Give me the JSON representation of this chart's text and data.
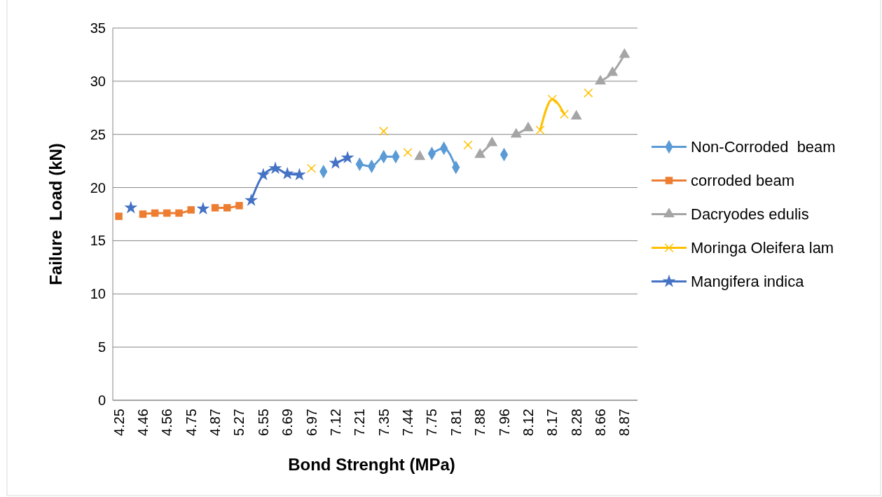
{
  "chart_data": {
    "type": "line",
    "xlabel": "Bond Strenght (MPa)",
    "ylabel": "Failure  Load (kN)",
    "categories": [
      "4.25",
      null,
      "4.46",
      null,
      "4.56",
      null,
      "4.75",
      null,
      "4.87",
      null,
      "5.27",
      null,
      "6.55",
      null,
      "6.69",
      null,
      "6.97",
      null,
      "7.12",
      null,
      "7.21",
      null,
      "7.35",
      null,
      "7.44",
      null,
      "7.75",
      null,
      "7.81",
      null,
      "7.88",
      null,
      "7.96",
      null,
      "8.12",
      null,
      "8.17",
      null,
      "8.28",
      null,
      "8.66",
      null,
      "8.87"
    ],
    "series": [
      {
        "name": "Non-Corroded  beam",
        "color": "#5b9bd5",
        "marker": "diamond",
        "values": [
          null,
          null,
          null,
          null,
          null,
          null,
          null,
          null,
          null,
          null,
          null,
          null,
          null,
          null,
          null,
          null,
          null,
          21.5,
          null,
          null,
          22.2,
          22.0,
          22.9,
          22.9,
          null,
          null,
          23.2,
          23.7,
          21.9,
          null,
          null,
          null,
          23.1,
          null,
          null,
          null,
          null,
          null,
          null,
          null,
          null,
          null,
          null
        ]
      },
      {
        "name": "corroded beam",
        "color": "#ed7d31",
        "marker": "square",
        "values": [
          17.3,
          null,
          17.5,
          17.6,
          17.6,
          17.6,
          17.9,
          null,
          18.1,
          18.1,
          18.3,
          null,
          null,
          null,
          null,
          null,
          null,
          null,
          null,
          null,
          null,
          null,
          null,
          null,
          null,
          null,
          null,
          null,
          null,
          null,
          null,
          null,
          null,
          null,
          null,
          null,
          null,
          null,
          null,
          null,
          null,
          null,
          null
        ]
      },
      {
        "name": "Dacryodes edulis",
        "color": "#a5a5a5",
        "marker": "triangle",
        "values": [
          null,
          null,
          null,
          null,
          null,
          null,
          null,
          null,
          null,
          null,
          null,
          null,
          null,
          null,
          null,
          null,
          null,
          null,
          null,
          null,
          null,
          null,
          null,
          null,
          null,
          22.9,
          null,
          null,
          null,
          null,
          23.1,
          24.2,
          null,
          25.0,
          25.6,
          null,
          null,
          null,
          26.7,
          null,
          30.0,
          30.8,
          32.5
        ]
      },
      {
        "name": "Moringa Oleifera lam",
        "color": "#ffc000",
        "marker": "cross",
        "values": [
          null,
          null,
          null,
          null,
          null,
          null,
          null,
          null,
          null,
          null,
          null,
          null,
          null,
          null,
          null,
          null,
          21.8,
          null,
          null,
          null,
          null,
          null,
          25.3,
          null,
          23.3,
          null,
          null,
          null,
          null,
          24.0,
          null,
          null,
          null,
          null,
          null,
          25.4,
          28.3,
          26.9,
          null,
          28.9,
          null,
          null,
          null
        ]
      },
      {
        "name": "Mangifera indica",
        "color": "#4472c4",
        "marker": "star",
        "values": [
          null,
          18.1,
          null,
          null,
          null,
          null,
          null,
          18.0,
          null,
          null,
          null,
          18.8,
          21.2,
          21.8,
          21.3,
          21.2,
          null,
          null,
          22.3,
          22.8,
          null,
          null,
          null,
          null,
          null,
          null,
          null,
          null,
          null,
          null,
          null,
          null,
          null,
          null,
          null,
          null,
          null,
          null,
          null,
          null,
          null,
          null,
          null
        ]
      }
    ],
    "ylim": [
      0,
      35
    ],
    "yticks": [
      0,
      5,
      10,
      15,
      20,
      25,
      30,
      35
    ],
    "grid": "y",
    "legend": "right"
  }
}
